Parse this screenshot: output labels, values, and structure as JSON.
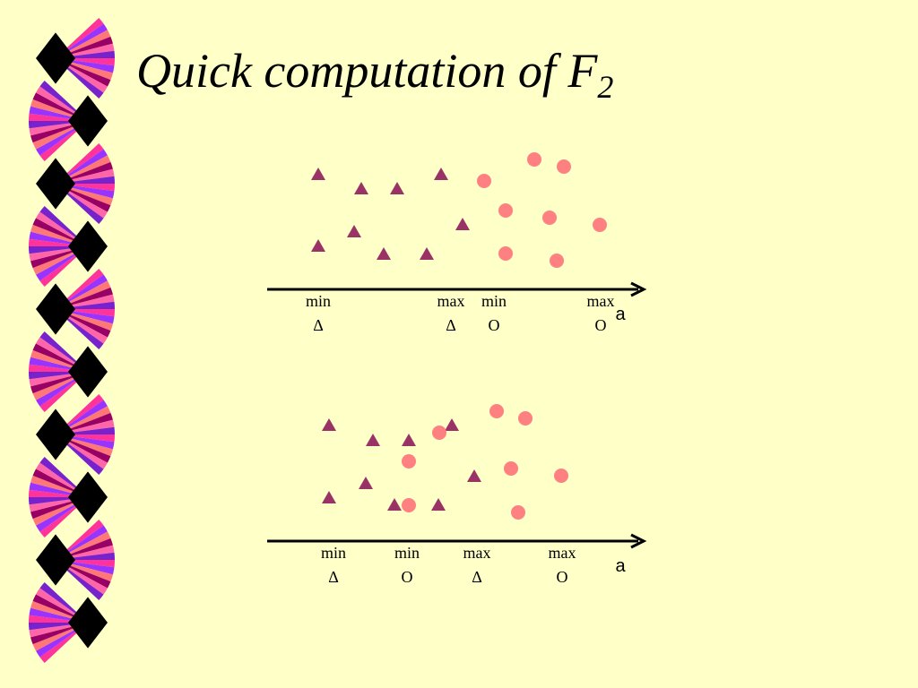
{
  "title": {
    "text": "Quick computation of F",
    "subscript": "2"
  },
  "diagrams": [
    {
      "axis_label": "a",
      "ticks": [
        {
          "top": "min",
          "bottom": "Δ"
        },
        {
          "top": "max",
          "bottom": "Δ"
        },
        {
          "top": "min",
          "bottom": "O"
        },
        {
          "top": "max",
          "bottom": "O"
        }
      ]
    },
    {
      "axis_label": "a",
      "ticks": [
        {
          "top": "min",
          "bottom": "Δ"
        },
        {
          "top": "min",
          "bottom": "O"
        },
        {
          "top": "max",
          "bottom": "Δ"
        },
        {
          "top": "max",
          "bottom": "O"
        }
      ]
    }
  ]
}
